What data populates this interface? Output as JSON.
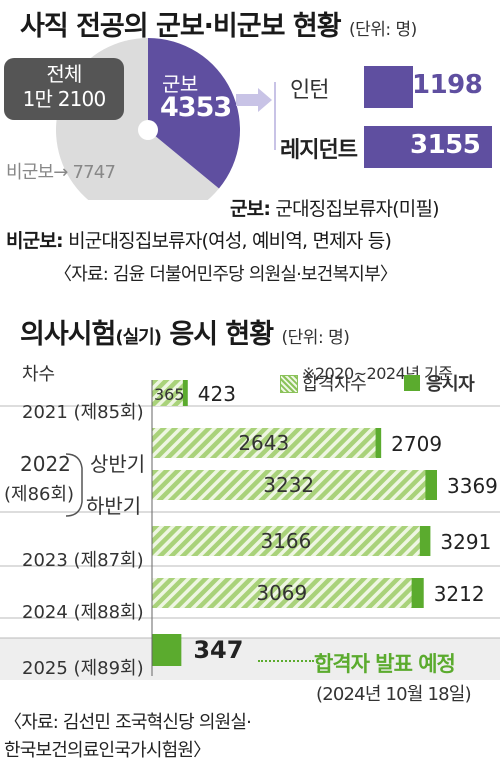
{
  "chart_data": [
    {
      "type": "pie",
      "title": "사직 전공의 군보·비군보 현황",
      "unit": "(단위: 명)",
      "total": {
        "label": "전체",
        "value": "1만 2100"
      },
      "slices": [
        {
          "label": "군보",
          "value": 4353,
          "color": "#5f4fa0"
        },
        {
          "label": "비군보",
          "value": 7747,
          "color": "#dcdcdc"
        }
      ],
      "non_military_label": "비군보→ 7747",
      "breakdown": [
        {
          "label": "인턴",
          "value": 1198
        },
        {
          "label": "레지던트",
          "value": 3155
        }
      ],
      "definitions": [
        {
          "term": "군보:",
          "text": "군대징집보류자(미필)"
        },
        {
          "term": "비군보:",
          "text": "비군대징집보류자(여성, 예비역, 면제자 등)"
        }
      ],
      "source": "〈자료: 김윤 더불어민주당 의원실·보건복지부〉"
    },
    {
      "type": "bar",
      "title": "의사시험",
      "title_paren": "(실기)",
      "title_rest": " 응시 현황",
      "unit": "(단위: 명)",
      "note": "※2020~2024년 기준",
      "round_header": "차수",
      "legend": [
        {
          "name": "합격자수",
          "pattern": "hatch"
        },
        {
          "name": "응시자",
          "pattern": "solid",
          "color": "#5bab2e"
        }
      ],
      "rows": [
        {
          "year": "2021",
          "round": "(제85회)",
          "passed": 365,
          "applicants": 423
        },
        {
          "sub": "상반기",
          "passed": 2643,
          "applicants": 2709
        },
        {
          "sub": "하반기",
          "passed": 3232,
          "applicants": 3369
        },
        {
          "year": "2023",
          "round": "(제87회)",
          "passed": 3166,
          "applicants": 3291
        },
        {
          "year": "2024",
          "round": "(제88회)",
          "passed": 3069,
          "applicants": 3212
        },
        {
          "year": "2025",
          "round": "(제89회)",
          "applicants": 347,
          "pending": true
        }
      ],
      "group_2022": {
        "year": "2022",
        "round": "(제86회)"
      },
      "pending_note": "합격자 발표 예정",
      "pending_date": "(2024년 10월 18일)",
      "source_line1": "〈자료: 김선민 조국혁신당 의원실·",
      "source_line2": "한국보건의료인국가시험원〉",
      "xlim": [
        0,
        3400
      ]
    }
  ]
}
